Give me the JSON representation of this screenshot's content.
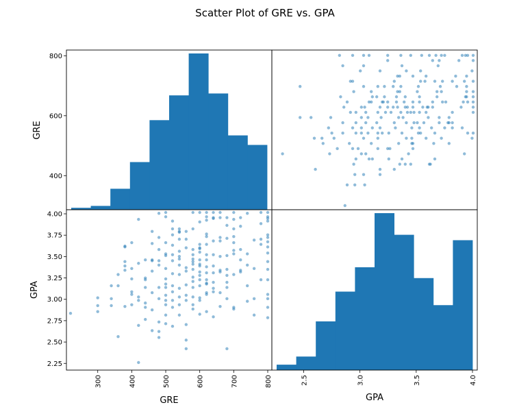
{
  "chart_data": {
    "type": "scatter",
    "title": "Scatter Plot of GRE vs. GPA",
    "variables": [
      "GRE",
      "GPA"
    ],
    "series_color": "#1f77b4",
    "point_alpha": 0.5,
    "panels": {
      "gre_hist": {
        "type": "bar",
        "variable": "GRE",
        "xlim": [
          220,
          800
        ],
        "bin_edges": [
          220,
          278,
          336,
          394,
          452,
          510,
          568,
          626,
          684,
          742,
          800
        ],
        "counts": [
          1,
          2,
          11,
          25,
          47,
          60,
          82,
          61,
          39,
          34
        ],
        "ylim": [
          300,
          810
        ],
        "yticks": [
          400,
          600,
          800
        ],
        "ytick_labels": [
          "400",
          "600",
          "800"
        ]
      },
      "gpa_hist": {
        "type": "bar",
        "variable": "GPA",
        "xlim": [
          2.26,
          4.0
        ],
        "bin_edges": [
          2.26,
          2.434,
          2.608,
          2.782,
          2.956,
          3.13,
          3.304,
          3.478,
          3.652,
          3.826,
          4.0
        ],
        "counts": [
          2,
          5,
          18,
          29,
          38,
          58,
          50,
          34,
          24,
          48
        ],
        "ylim": [
          2.22,
          4.0
        ],
        "yticks": [
          2.25,
          2.5,
          2.75,
          3.0,
          3.25,
          3.5,
          3.75,
          4.0
        ],
        "ytick_labels": [
          "2.25",
          "2.50",
          "2.75",
          "3.00",
          "3.25",
          "3.50",
          "3.75",
          "4.00"
        ]
      },
      "gpa_vs_gre": {
        "x_var": "GRE",
        "y_var": "GPA",
        "xlim": [
          220,
          800
        ],
        "ylim": [
          2.22,
          4.0
        ],
        "xticks": [
          300,
          400,
          500,
          600,
          700,
          800
        ],
        "xtick_labels": [
          "300",
          "400",
          "500",
          "600",
          "700",
          "800"
        ]
      },
      "gre_vs_gpa": {
        "x_var": "GPA",
        "y_var": "GRE",
        "xlim": [
          2.2,
          4.0
        ],
        "ylim": [
          220,
          810
        ],
        "xticks": [
          2.5,
          3.0,
          3.5,
          4.0
        ],
        "xtick_labels": [
          "2.5",
          "3.0",
          "3.5",
          "4.0"
        ]
      }
    },
    "points": [
      [
        220,
        2.83
      ],
      [
        300,
        2.92
      ],
      [
        300,
        3.01
      ],
      [
        300,
        2.85
      ],
      [
        340,
        3.15
      ],
      [
        340,
        2.92
      ],
      [
        340,
        3.0
      ],
      [
        360,
        2.56
      ],
      [
        360,
        3.15
      ],
      [
        360,
        3.28
      ],
      [
        380,
        3.61
      ],
      [
        380,
        3.33
      ],
      [
        380,
        2.91
      ],
      [
        380,
        3.38
      ],
      [
        380,
        3.43
      ],
      [
        380,
        3.6
      ],
      [
        400,
        3.05
      ],
      [
        400,
        3.35
      ],
      [
        400,
        2.93
      ],
      [
        400,
        3.65
      ],
      [
        400,
        3.23
      ],
      [
        400,
        3.08
      ],
      [
        420,
        2.26
      ],
      [
        420,
        2.69
      ],
      [
        420,
        2.98
      ],
      [
        420,
        3.02
      ],
      [
        420,
        3.41
      ],
      [
        420,
        3.92
      ],
      [
        440,
        3.13
      ],
      [
        440,
        2.95
      ],
      [
        440,
        2.9
      ],
      [
        440,
        3.22
      ],
      [
        440,
        3.24
      ],
      [
        440,
        3.45
      ],
      [
        440,
        2.76
      ],
      [
        460,
        2.63
      ],
      [
        460,
        3.45
      ],
      [
        460,
        3.44
      ],
      [
        460,
        3.07
      ],
      [
        460,
        2.87
      ],
      [
        460,
        3.32
      ],
      [
        460,
        3.64
      ],
      [
        460,
        3.78
      ],
      [
        480,
        3.44
      ],
      [
        480,
        3.39
      ],
      [
        480,
        2.73
      ],
      [
        480,
        2.62
      ],
      [
        480,
        3.0
      ],
      [
        480,
        3.13
      ],
      [
        480,
        3.57
      ],
      [
        480,
        3.71
      ],
      [
        480,
        2.55
      ],
      [
        480,
        3.99
      ],
      [
        500,
        3.17
      ],
      [
        500,
        2.98
      ],
      [
        500,
        3.13
      ],
      [
        500,
        3.95
      ],
      [
        500,
        2.71
      ],
      [
        500,
        3.04
      ],
      [
        500,
        3.65
      ],
      [
        500,
        3.5
      ],
      [
        500,
        3.35
      ],
      [
        500,
        2.81
      ],
      [
        500,
        3.52
      ],
      [
        500,
        3.23
      ],
      [
        500,
        4.0
      ],
      [
        500,
        2.93
      ],
      [
        520,
        2.9
      ],
      [
        520,
        3.29
      ],
      [
        520,
        3.74
      ],
      [
        520,
        3.44
      ],
      [
        520,
        3.51
      ],
      [
        520,
        3.08
      ],
      [
        520,
        2.68
      ],
      [
        520,
        3.9
      ],
      [
        520,
        3.81
      ],
      [
        520,
        3.15
      ],
      [
        520,
        2.98
      ],
      [
        520,
        3.62
      ],
      [
        540,
        3.81
      ],
      [
        540,
        3.78
      ],
      [
        540,
        3.12
      ],
      [
        540,
        2.81
      ],
      [
        540,
        3.39
      ],
      [
        540,
        3.28
      ],
      [
        540,
        3.69
      ],
      [
        540,
        3.02
      ],
      [
        540,
        3.77
      ],
      [
        540,
        3.49
      ],
      [
        540,
        3.55
      ],
      [
        540,
        2.93
      ],
      [
        540,
        3.46
      ],
      [
        560,
        3.32
      ],
      [
        560,
        2.52
      ],
      [
        560,
        3.16
      ],
      [
        560,
        3.59
      ],
      [
        560,
        3.69
      ],
      [
        560,
        2.98
      ],
      [
        560,
        3.04
      ],
      [
        560,
        2.42
      ],
      [
        560,
        3.36
      ],
      [
        560,
        3.78
      ],
      [
        560,
        2.7
      ],
      [
        580,
        3.4
      ],
      [
        580,
        3.2
      ],
      [
        580,
        3.02
      ],
      [
        580,
        3.43
      ],
      [
        580,
        3.46
      ],
      [
        580,
        3.51
      ],
      [
        580,
        3.13
      ],
      [
        580,
        2.93
      ],
      [
        580,
        4.0
      ],
      [
        580,
        3.57
      ],
      [
        580,
        2.88
      ],
      [
        580,
        3.81
      ],
      [
        580,
        3.25
      ],
      [
        580,
        3.34
      ],
      [
        600,
        3.59
      ],
      [
        600,
        3.22
      ],
      [
        600,
        3.45
      ],
      [
        600,
        3.4
      ],
      [
        600,
        2.82
      ],
      [
        600,
        3.63
      ],
      [
        600,
        3.89
      ],
      [
        600,
        3.15
      ],
      [
        600,
        3.58
      ],
      [
        600,
        3.31
      ],
      [
        600,
        4.0
      ],
      [
        600,
        3.01
      ],
      [
        600,
        3.38
      ],
      [
        600,
        2.98
      ],
      [
        600,
        3.54
      ],
      [
        600,
        3.27
      ],
      [
        620,
        3.18
      ],
      [
        620,
        3.22
      ],
      [
        620,
        3.05
      ],
      [
        620,
        3.3
      ],
      [
        620,
        3.95
      ],
      [
        620,
        3.75
      ],
      [
        620,
        3.37
      ],
      [
        620,
        3.63
      ],
      [
        620,
        3.17
      ],
      [
        620,
        3.07
      ],
      [
        620,
        4.0
      ],
      [
        620,
        2.85
      ],
      [
        620,
        3.51
      ],
      [
        620,
        3.45
      ],
      [
        620,
        3.91
      ],
      [
        620,
        3.72
      ],
      [
        640,
        3.19
      ],
      [
        640,
        3.51
      ],
      [
        640,
        3.93
      ],
      [
        640,
        2.79
      ],
      [
        640,
        3.08
      ],
      [
        640,
        3.3
      ],
      [
        640,
        4.0
      ],
      [
        640,
        3.67
      ],
      [
        640,
        3.38
      ],
      [
        640,
        3.94
      ],
      [
        640,
        3.12
      ],
      [
        660,
        3.31
      ],
      [
        660,
        3.49
      ],
      [
        660,
        3.94
      ],
      [
        660,
        4.0
      ],
      [
        660,
        3.33
      ],
      [
        660,
        3.07
      ],
      [
        660,
        3.67
      ],
      [
        660,
        3.71
      ],
      [
        660,
        2.91
      ],
      [
        680,
        3.19
      ],
      [
        680,
        3.0
      ],
      [
        680,
        3.85
      ],
      [
        680,
        3.34
      ],
      [
        680,
        3.7
      ],
      [
        680,
        2.42
      ],
      [
        680,
        3.94
      ],
      [
        680,
        3.27
      ],
      [
        680,
        3.5
      ],
      [
        680,
        3.13
      ],
      [
        700,
        3.65
      ],
      [
        700,
        3.92
      ],
      [
        700,
        3.72
      ],
      [
        700,
        2.88
      ],
      [
        700,
        3.52
      ],
      [
        700,
        3.56
      ],
      [
        700,
        4.0
      ],
      [
        700,
        3.28
      ],
      [
        700,
        2.9
      ],
      [
        700,
        3.81
      ],
      [
        720,
        3.45
      ],
      [
        720,
        3.33
      ],
      [
        720,
        3.84
      ],
      [
        720,
        3.94
      ],
      [
        720,
        3.31
      ],
      [
        720,
        3.57
      ],
      [
        740,
        3.39
      ],
      [
        740,
        3.99
      ],
      [
        740,
        2.97
      ],
      [
        740,
        3.15
      ],
      [
        740,
        3.52
      ],
      [
        760,
        3.35
      ],
      [
        760,
        2.81
      ],
      [
        760,
        3.0
      ],
      [
        760,
        3.68
      ],
      [
        780,
        3.63
      ],
      [
        780,
        3.87
      ],
      [
        780,
        3.22
      ],
      [
        780,
        4.0
      ],
      [
        780,
        3.69
      ],
      [
        800,
        3.0
      ],
      [
        800,
        3.71
      ],
      [
        800,
        2.78
      ],
      [
        800,
        3.22
      ],
      [
        800,
        3.43
      ],
      [
        800,
        3.74
      ],
      [
        800,
        3.05
      ],
      [
        800,
        3.9
      ],
      [
        800,
        4.0
      ],
      [
        800,
        3.93
      ],
      [
        800,
        2.9
      ],
      [
        800,
        3.66
      ],
      [
        800,
        3.6
      ],
      [
        800,
        3.53
      ],
      [
        800,
        3.95
      ],
      [
        800,
        3.34
      ]
    ]
  }
}
